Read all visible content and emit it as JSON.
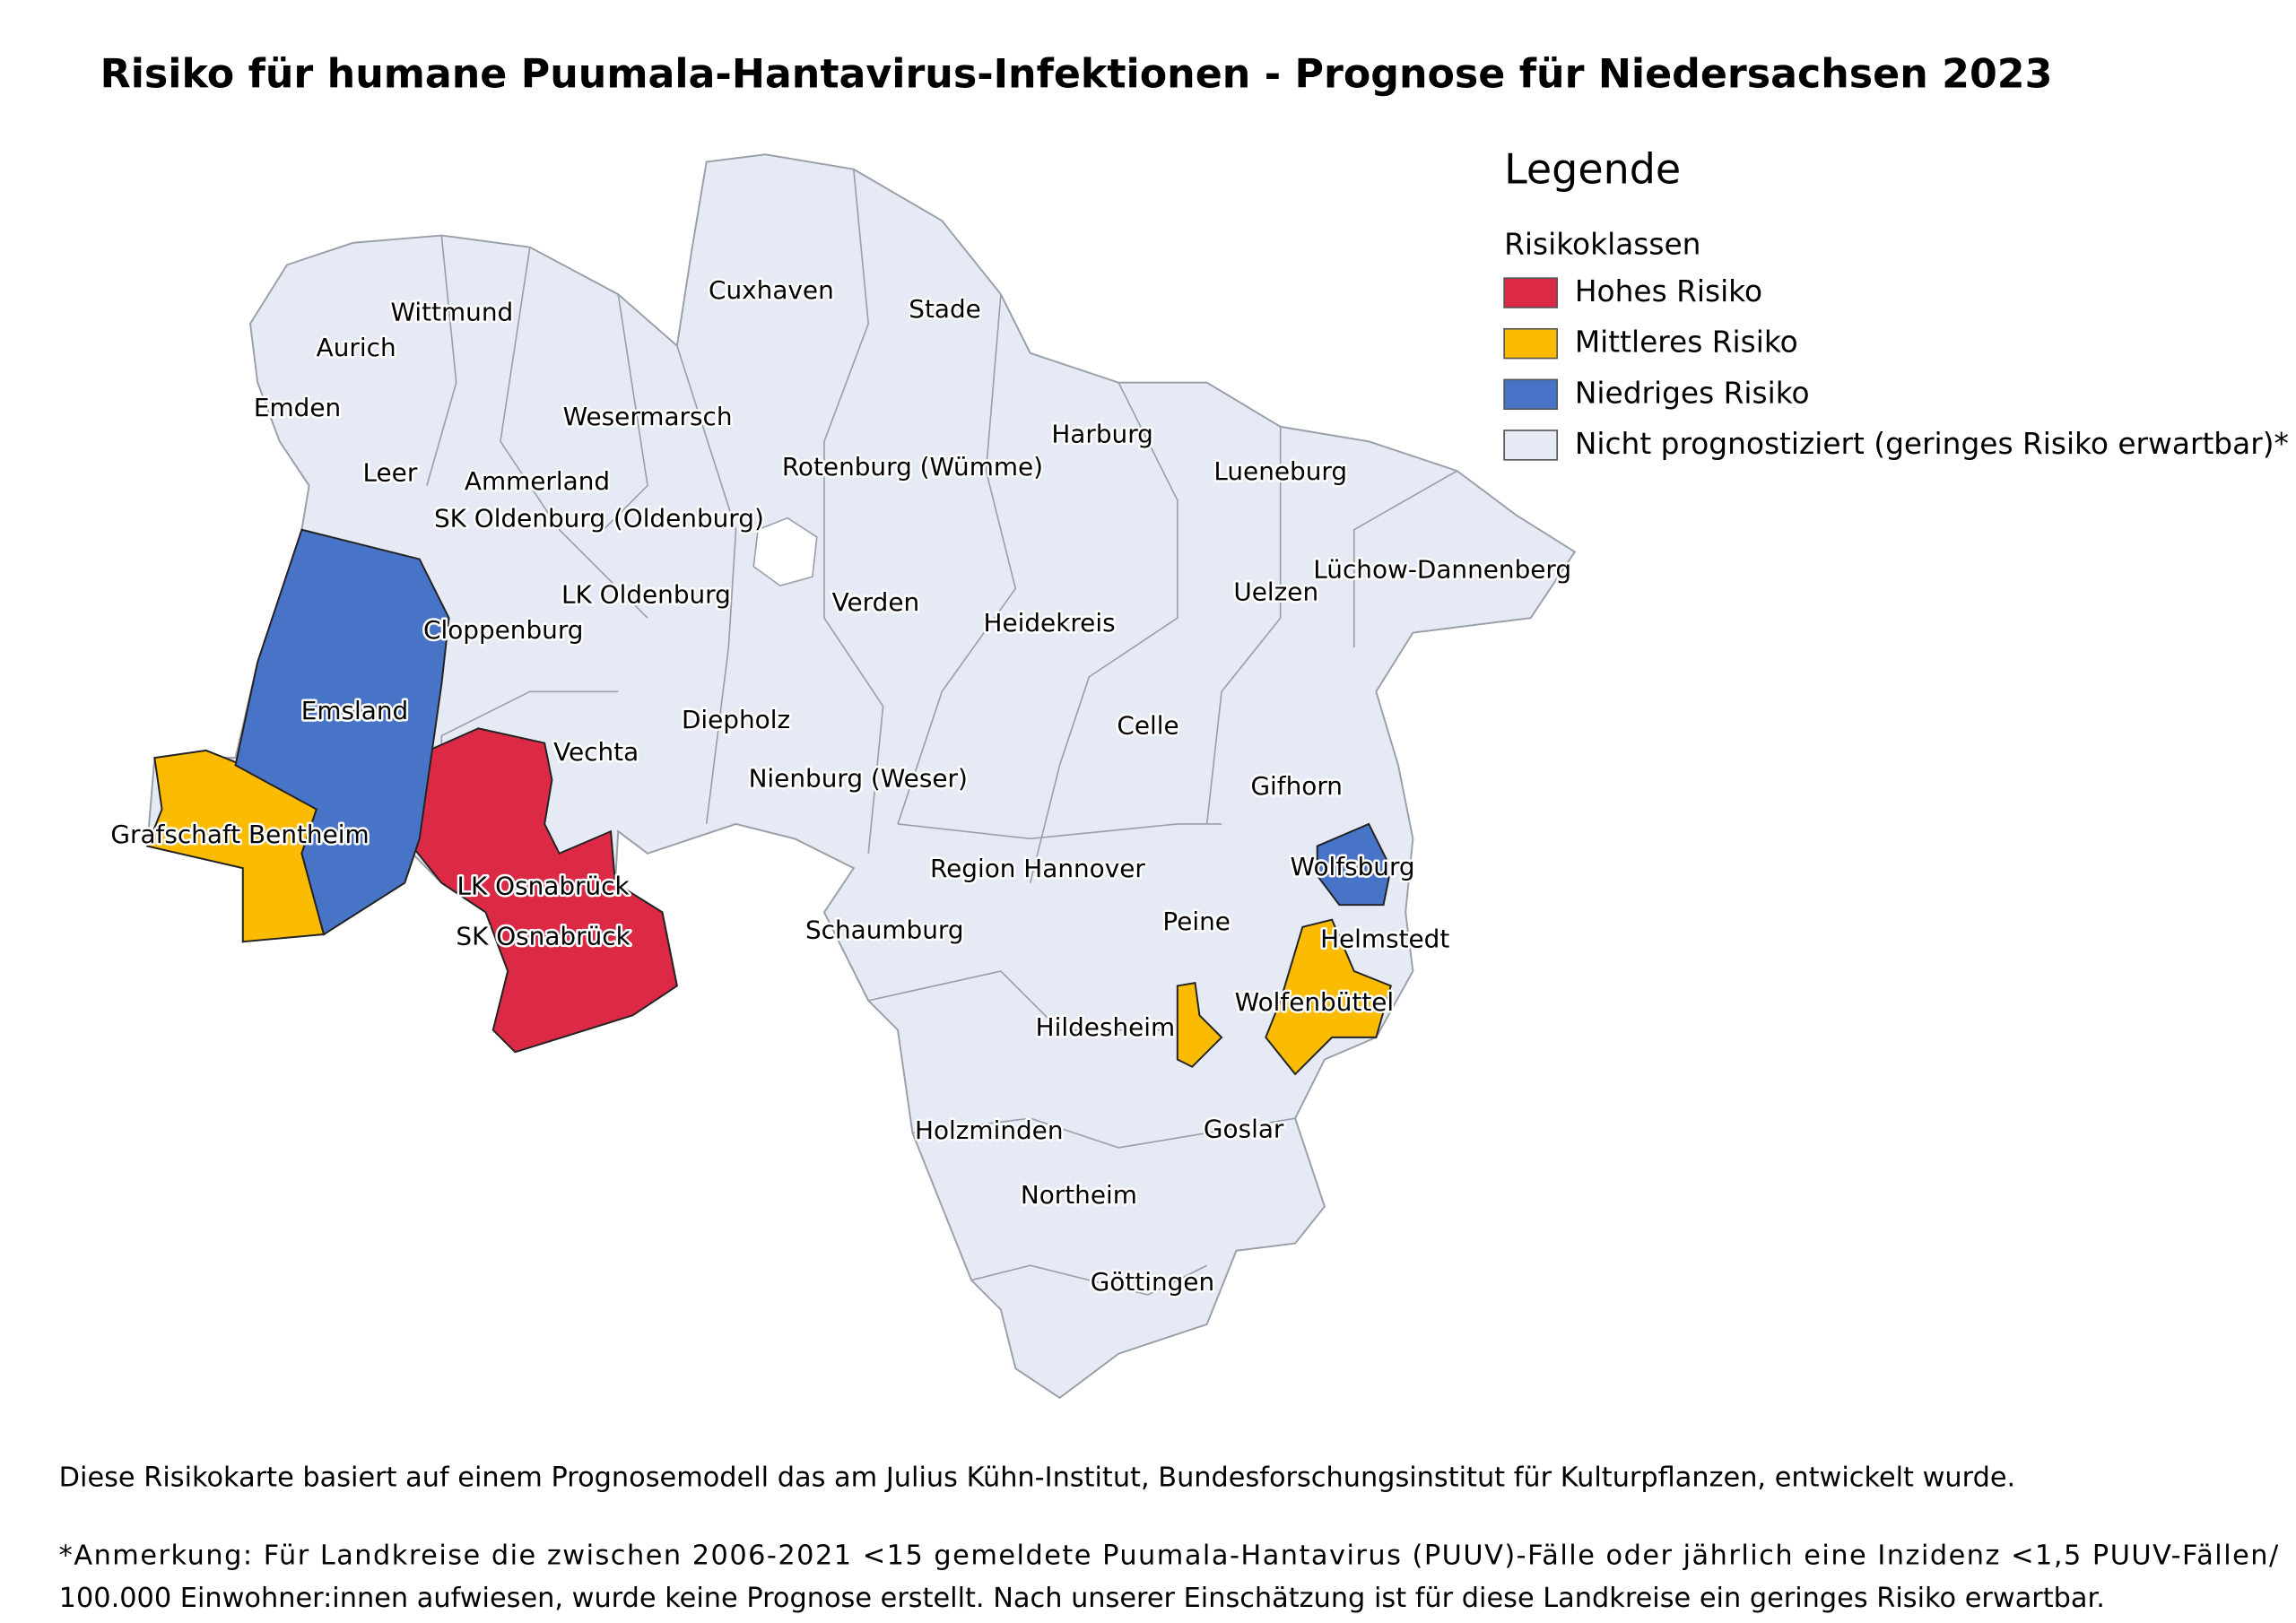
{
  "title": "Risiko für humane Puumala-Hantavirus-Infektionen - Prognose für Niedersachsen 2023",
  "legend": {
    "title": "Legende",
    "subtitle": "Risikoklassen",
    "items": [
      {
        "label": "Hohes Risiko",
        "color": "#dc2a46",
        "regions": [
          "LK Osnabrück",
          "SK Osnabrück"
        ]
      },
      {
        "label": "Mittleres Risiko",
        "color": "#fbbb00",
        "regions": [
          "Grafschaft Bentheim",
          "Wolfenbüttel"
        ]
      },
      {
        "label": "Niedriges Risiko",
        "color": "#4874c8",
        "regions": [
          "Emsland",
          "Wolfsburg"
        ]
      },
      {
        "label": "Nicht prognostiziert (geringes Risiko erwartbar)*",
        "color": "#e6eaf4",
        "regions": [
          "Wittmund",
          "Aurich",
          "Emden",
          "Leer",
          "Ammerland",
          "SK Oldenburg (Oldenburg)",
          "Wesermarsch",
          "Cuxhaven",
          "Stade",
          "Harburg",
          "Rotenburg (Wümme)",
          "Lueneburg",
          "Lüchow-Dannenberg",
          "Uelzen",
          "LK Oldenburg",
          "Cloppenburg",
          "Verden",
          "Heidekreis",
          "Vechta",
          "Diepholz",
          "Celle",
          "Nienburg (Weser)",
          "Gifhorn",
          "Region Hannover",
          "Schaumburg",
          "Peine",
          "Helmstedt",
          "Hildesheim",
          "Holzminden",
          "Goslar",
          "Northeim",
          "Göttingen"
        ]
      }
    ]
  },
  "footer": {
    "source": "Diese Risikokarte basiert auf einem Prognosemodell das am Julius Kühn-Institut, Bundesforschungsinstitut für Kulturpflanzen, entwickelt wurde.",
    "note": [
      "*Anmerkung: Für Landkreise die zwischen 2006-2021 <15 gemeldete Puumala-Hantavirus (PUUV)-Fälle oder jährlich eine Inzidenz <1,5 PUUV-Fällen/",
      "100.000 Einwohner:innen aufwiesen, wurde keine Prognose erstellt. Nach unserer Einschätzung ist für diese Landkreise ein geringes Risiko erwartbar."
    ]
  }
}
